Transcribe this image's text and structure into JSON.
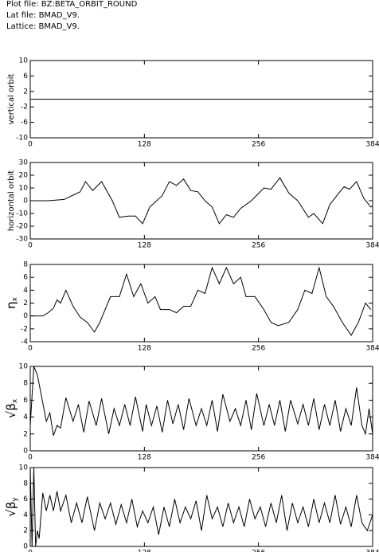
{
  "header": {
    "lines": [
      "Plot file: BZ:BETA_ORBIT_ROUND",
      "Lat file: BMAD_V9.",
      "Lattice: BMAD_V9."
    ]
  },
  "chart_data": [
    {
      "type": "line",
      "ylabel": "vertical orbit",
      "color": "#000000",
      "x": [
        0,
        384
      ],
      "values": [
        0,
        0
      ],
      "xlim": [
        0,
        384
      ],
      "xticks": [
        0,
        128,
        256,
        384
      ],
      "ylim": [
        -10,
        10
      ],
      "yticks": [
        10,
        6,
        2,
        -2,
        -6,
        -10
      ]
    },
    {
      "type": "line",
      "ylabel": "horizontal orbit",
      "color": "#000000",
      "x": [
        0,
        20,
        38,
        50,
        56,
        62,
        70,
        80,
        92,
        100,
        110,
        118,
        126,
        134,
        148,
        156,
        164,
        172,
        180,
        188,
        196,
        204,
        212,
        220,
        228,
        236,
        248,
        262,
        270,
        280,
        290,
        300,
        312,
        318,
        328,
        336,
        346,
        352,
        358,
        366,
        374,
        382,
        384
      ],
      "values": [
        0,
        0,
        1,
        5,
        7,
        15,
        8,
        15,
        0,
        -13,
        -12,
        -12,
        -18,
        -5,
        4,
        15,
        12,
        17,
        8,
        7,
        0,
        -5,
        -18,
        -11,
        -13,
        -6,
        0,
        10,
        9,
        18,
        6,
        0,
        -13,
        -10,
        -18,
        -3,
        6,
        11,
        9,
        15,
        2,
        -5,
        -4
      ],
      "xlim": [
        0,
        384
      ],
      "xticks": [
        0,
        128,
        256,
        384
      ],
      "ylim": [
        -30,
        30
      ],
      "yticks": [
        30,
        20,
        10,
        0,
        -10,
        -20,
        -30
      ]
    },
    {
      "type": "line",
      "ylabel": "η",
      "ylabel_sub": "x",
      "color": "#000000",
      "x": [
        0,
        14,
        20,
        26,
        30,
        34,
        40,
        48,
        56,
        64,
        72,
        78,
        90,
        100,
        108,
        116,
        124,
        132,
        140,
        146,
        156,
        164,
        172,
        180,
        188,
        196,
        204,
        212,
        220,
        228,
        236,
        242,
        252,
        262,
        270,
        278,
        290,
        300,
        308,
        316,
        324,
        332,
        340,
        350,
        360,
        368,
        376,
        382
      ],
      "values": [
        0,
        0,
        0.5,
        1.2,
        2.5,
        2,
        4,
        1.5,
        -0.2,
        -1,
        -2.5,
        -1,
        3,
        3,
        6.5,
        3,
        5,
        2,
        3,
        1,
        1,
        0.5,
        1.5,
        1.5,
        4,
        3.5,
        7.5,
        5,
        7.5,
        5,
        6,
        3,
        3,
        1,
        -1,
        -1.5,
        -1,
        1,
        4,
        3.5,
        7.5,
        3,
        1.5,
        -1,
        -3,
        -1,
        2,
        1
      ],
      "xlim": [
        0,
        384
      ],
      "xticks": [
        0,
        128,
        256,
        384
      ],
      "ylim": [
        -4,
        8
      ],
      "yticks": [
        8,
        6,
        4,
        2,
        0,
        -2,
        -4
      ]
    },
    {
      "type": "line",
      "ylabel": "√β",
      "ylabel_sub": "x",
      "color": "#000000",
      "x": [
        0,
        4,
        8,
        18,
        22,
        26,
        30,
        34,
        40,
        48,
        54,
        60,
        66,
        74,
        80,
        88,
        94,
        100,
        106,
        112,
        118,
        126,
        130,
        136,
        142,
        148,
        154,
        160,
        166,
        172,
        178,
        186,
        192,
        198,
        204,
        210,
        216,
        224,
        230,
        236,
        242,
        248,
        254,
        262,
        268,
        274,
        280,
        286,
        292,
        300,
        306,
        312,
        318,
        324,
        330,
        336,
        342,
        348,
        354,
        360,
        366,
        372,
        376,
        380,
        384
      ],
      "values": [
        3,
        10,
        9,
        3.5,
        4.5,
        1.8,
        3,
        2.7,
        6.3,
        3.5,
        5.5,
        2.2,
        5.9,
        3,
        6.2,
        2,
        5,
        3,
        5.5,
        3,
        6.4,
        2.3,
        5.5,
        3,
        5.3,
        2.2,
        6,
        3.2,
        5.5,
        2.5,
        6.2,
        3,
        5,
        3,
        6,
        2.3,
        6.7,
        3.5,
        5,
        3,
        6,
        2.5,
        6.8,
        3,
        5.5,
        3,
        6,
        2.3,
        6,
        3.2,
        5.5,
        3,
        6.2,
        2.5,
        5.5,
        3,
        6,
        2.3,
        5,
        3,
        7.5,
        3,
        2,
        5,
        2
      ],
      "xlim": [
        0,
        384
      ],
      "xticks": [
        0,
        128,
        256,
        384
      ],
      "ylim": [
        0,
        10
      ],
      "yticks": [
        10,
        8,
        6,
        4,
        2,
        0
      ]
    },
    {
      "type": "line",
      "ylabel": "√β",
      "ylabel_sub": "y",
      "color": "#000000",
      "x": [
        0,
        2,
        4,
        6,
        8,
        10,
        14,
        18,
        22,
        26,
        30,
        34,
        40,
        46,
        52,
        58,
        64,
        72,
        78,
        84,
        90,
        96,
        102,
        108,
        114,
        120,
        126,
        132,
        138,
        144,
        150,
        156,
        162,
        168,
        174,
        180,
        186,
        192,
        198,
        204,
        210,
        216,
        222,
        228,
        234,
        240,
        246,
        252,
        258,
        264,
        270,
        276,
        282,
        288,
        294,
        300,
        306,
        312,
        318,
        324,
        330,
        336,
        342,
        348,
        354,
        360,
        366,
        372,
        378,
        384
      ],
      "values": [
        10,
        0,
        10,
        0,
        2,
        1,
        6.8,
        4.5,
        6.5,
        4.5,
        7,
        4.5,
        6.5,
        3,
        5.5,
        3,
        6.3,
        2,
        5.5,
        3.5,
        5.5,
        2.8,
        5.3,
        3,
        6,
        2.5,
        4.5,
        3,
        5,
        1.5,
        5,
        2.5,
        6,
        3,
        5,
        3.5,
        5.8,
        2,
        6.5,
        3.5,
        5,
        2.5,
        5.5,
        3,
        5,
        2.5,
        6,
        3.5,
        5,
        2.5,
        5.5,
        3,
        6.5,
        2,
        5.5,
        3,
        5,
        2.5,
        6,
        3,
        5.5,
        3,
        6.5,
        2.8,
        5,
        2.5,
        6.5,
        3,
        2,
        4
      ],
      "xlim": [
        0,
        384
      ],
      "xticks": [
        0,
        128,
        256,
        384
      ],
      "ylim": [
        0,
        10
      ],
      "yticks": [
        10,
        8,
        6,
        4,
        2,
        0
      ]
    }
  ]
}
